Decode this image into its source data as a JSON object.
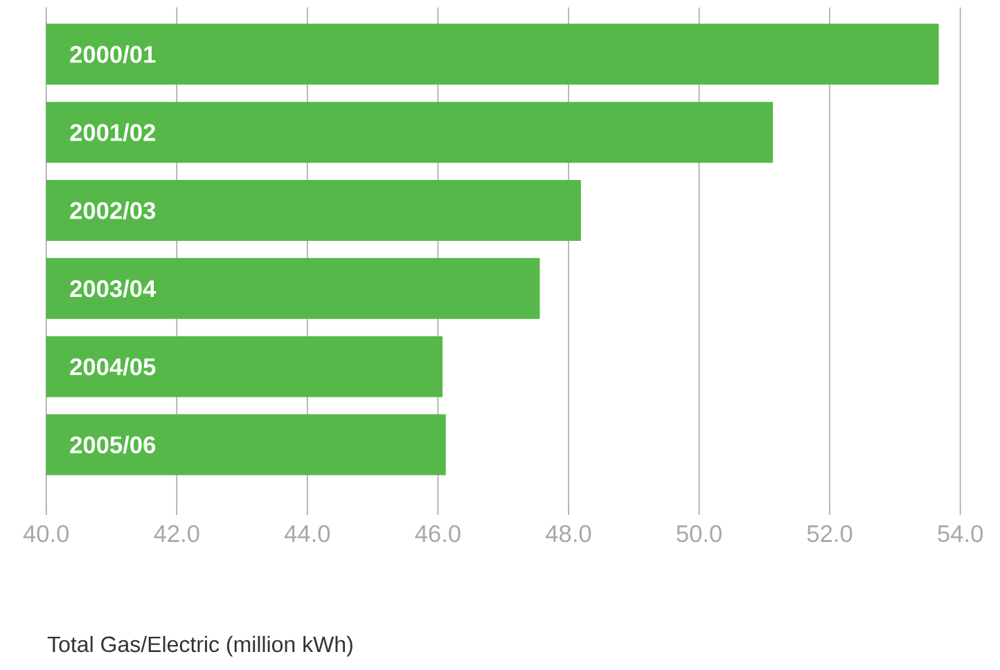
{
  "chart_data": {
    "type": "bar",
    "orientation": "horizontal",
    "xlabel": "Total Gas/Electric (million kWh)",
    "categories": [
      "2000/01",
      "2001/02",
      "2002/03",
      "2003/04",
      "2004/05",
      "2005/06"
    ],
    "values": [
      53.67,
      51.13,
      48.19,
      47.56,
      46.07,
      46.12
    ],
    "color": "#56b849",
    "grid": "x",
    "xlim": [
      40,
      54
    ],
    "xticks": [
      {
        "value": 40,
        "label": "40.0"
      },
      {
        "value": 42,
        "label": "42.0"
      },
      {
        "value": 44,
        "label": "44.0"
      },
      {
        "value": 46,
        "label": "46.0"
      },
      {
        "value": 48,
        "label": "48.0"
      },
      {
        "value": 50,
        "label": "50.0"
      },
      {
        "value": 52,
        "label": "52.0"
      },
      {
        "value": 54,
        "label": "54.0"
      }
    ]
  }
}
